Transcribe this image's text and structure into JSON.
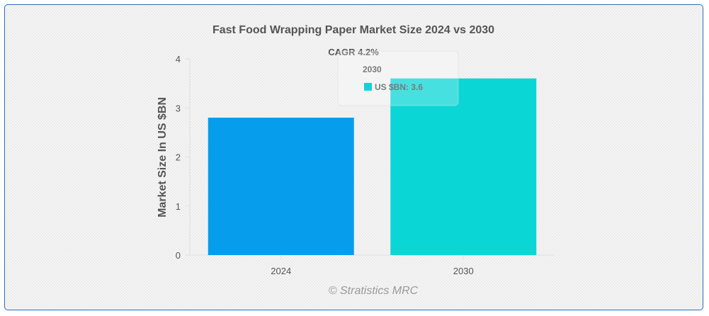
{
  "chart_data": {
    "type": "bar",
    "title": "Fast Food Wrapping Paper Market Size 2024 vs 2030",
    "annotation": "CAGR 4.2%",
    "categories": [
      "2024",
      "2030"
    ],
    "series": [
      {
        "name": "US $BN",
        "values": [
          2.8,
          3.6
        ],
        "colors": [
          "#069ded",
          "#0ad6d6"
        ]
      }
    ],
    "xlabel": "",
    "ylabel": "Market Size In US $BN",
    "ylim": [
      0,
      4
    ],
    "yticks": [
      0,
      1,
      2,
      3,
      4
    ],
    "grid": false,
    "legend": "none",
    "tooltip": {
      "title": "2030",
      "label": "US $BN: 3.6",
      "color": "#0ad6d6"
    }
  },
  "credit": "© Stratistics MRC"
}
